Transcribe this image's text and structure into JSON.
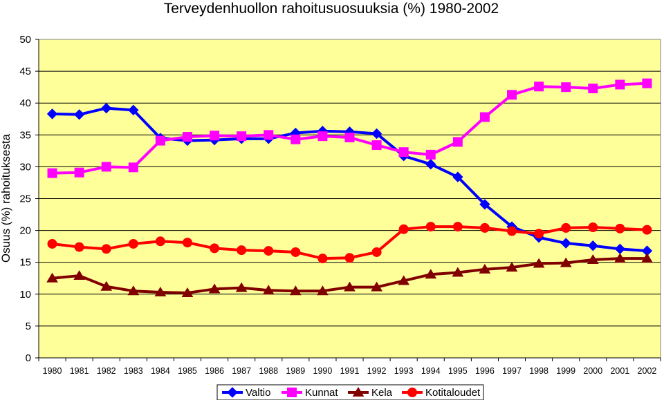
{
  "chart_data": {
    "type": "line",
    "title": "Terveydenhuollon rahoitusuosuuksia (%) 1980-2002",
    "xlabel": "",
    "ylabel": "Osuus (%) rahoituksesta",
    "ylim": [
      0,
      50
    ],
    "yticks": [
      "0",
      "5",
      "10",
      "15",
      "20",
      "25",
      "30",
      "35",
      "40",
      "45",
      "50"
    ],
    "categories": [
      "1980",
      "1981",
      "1982",
      "1983",
      "1984",
      "1985",
      "1986",
      "1987",
      "1988",
      "1989",
      "1990",
      "1991",
      "1992",
      "1993",
      "1994",
      "1995",
      "1996",
      "1997",
      "1998",
      "1999",
      "2000",
      "2001",
      "2002"
    ],
    "grid": "horizontal",
    "legend_position": "bottom",
    "plot_background": "#FFFF99",
    "series": [
      {
        "name": "Valtio",
        "color": "#0000FF",
        "marker": "diamond",
        "values": [
          38.3,
          38.2,
          39.2,
          38.9,
          34.5,
          34.1,
          34.2,
          34.4,
          34.4,
          35.3,
          35.6,
          35.5,
          35.2,
          31.7,
          30.4,
          28.4,
          24.1,
          20.6,
          18.9,
          18.0,
          17.6,
          17.1,
          16.8
        ]
      },
      {
        "name": "Kunnat",
        "color": "#FF00FF",
        "marker": "square",
        "values": [
          29.0,
          29.1,
          30.0,
          29.9,
          34.1,
          34.7,
          34.9,
          34.8,
          35.0,
          34.3,
          34.8,
          34.6,
          33.4,
          32.3,
          31.9,
          33.9,
          37.8,
          41.3,
          42.6,
          42.5,
          42.3,
          42.9,
          43.1
        ]
      },
      {
        "name": "Kela",
        "color": "#800000",
        "marker": "triangle",
        "values": [
          12.5,
          12.9,
          11.2,
          10.5,
          10.3,
          10.2,
          10.8,
          11.0,
          10.6,
          10.5,
          10.5,
          11.1,
          11.1,
          12.1,
          13.1,
          13.4,
          13.9,
          14.2,
          14.8,
          14.9,
          15.4,
          15.6,
          15.6
        ]
      },
      {
        "name": "Kotitaloudet",
        "color": "#FF0000",
        "marker": "circle",
        "values": [
          17.9,
          17.4,
          17.1,
          17.9,
          18.3,
          18.1,
          17.2,
          16.9,
          16.8,
          16.6,
          15.6,
          15.7,
          16.6,
          20.2,
          20.6,
          20.6,
          20.4,
          19.9,
          19.5,
          20.4,
          20.5,
          20.3,
          20.1
        ]
      }
    ]
  }
}
